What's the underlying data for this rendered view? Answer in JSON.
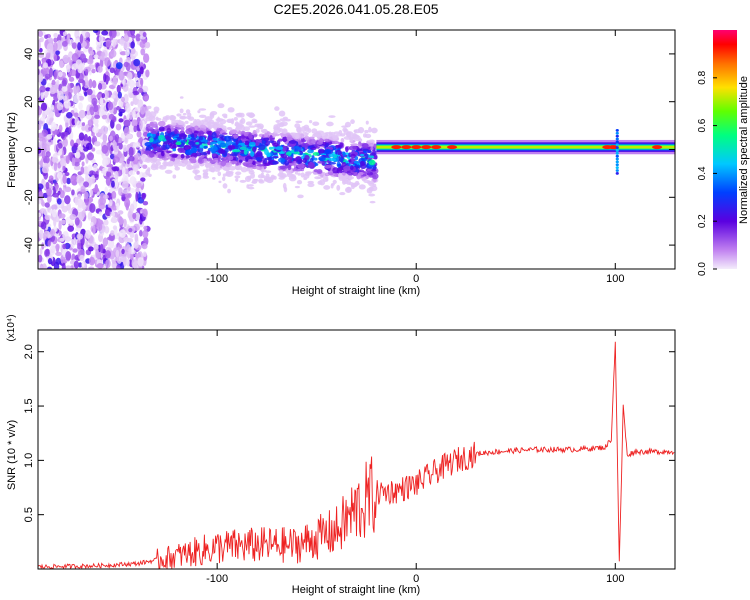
{
  "title": "C2E5.2026.041.05.28.E05",
  "chart_data": [
    {
      "type": "heatmap",
      "name": "spectrogram",
      "xlabel": "Height of straight line (km)",
      "ylabel": "Frequency (Hz)",
      "xlim": [
        -190,
        130
      ],
      "ylim": [
        -50,
        50
      ],
      "xticks": [
        -100,
        0,
        100
      ],
      "yticks": [
        -40,
        -20,
        0,
        20,
        40
      ],
      "colorbar": {
        "label": "Normalized spectral amplitude",
        "range": [
          0,
          1
        ],
        "ticks": [
          "0.0",
          "0.2",
          "0.4",
          "0.6",
          "0.8"
        ]
      },
      "regions": [
        {
          "description": "broadband noise",
          "x": [
            -190,
            -135
          ],
          "freq": [
            -50,
            50
          ],
          "amplitude": [
            0.0,
            0.2
          ]
        },
        {
          "description": "signal band",
          "x": [
            -135,
            -20
          ],
          "freq_center": [
            4,
            -5
          ],
          "freq_width": 6,
          "amplitude": [
            0.2,
            0.5
          ]
        },
        {
          "description": "strong line",
          "x": [
            -20,
            130
          ],
          "freq_center": 1,
          "freq_width": 2,
          "amplitude": [
            0.6,
            1.0
          ]
        }
      ]
    },
    {
      "type": "line",
      "name": "snr",
      "xlabel": "Height of straight line (km)",
      "ylabel": "SNR (10 * v/v)",
      "yscale_note": "(x10⁴)",
      "xlim": [
        -190,
        130
      ],
      "ylim": [
        0,
        2.2
      ],
      "xticks": [
        -100,
        0,
        100
      ],
      "yticks": [
        "0.5",
        "1.0",
        "1.5",
        "2.0"
      ],
      "color": "#ee2222",
      "x": [
        -190,
        -160,
        -140,
        -120,
        -100,
        -80,
        -60,
        -40,
        -30,
        -20,
        -10,
        0,
        10,
        20,
        30,
        40,
        60,
        80,
        95,
        98,
        100,
        102,
        104,
        106,
        110,
        120,
        130
      ],
      "values": [
        0.02,
        0.03,
        0.05,
        0.12,
        0.2,
        0.22,
        0.22,
        0.35,
        0.55,
        0.7,
        0.72,
        0.78,
        0.9,
        1.0,
        1.06,
        1.08,
        1.1,
        1.1,
        1.12,
        1.2,
        2.1,
        0.05,
        1.5,
        1.05,
        1.08,
        1.08,
        1.08
      ]
    }
  ]
}
